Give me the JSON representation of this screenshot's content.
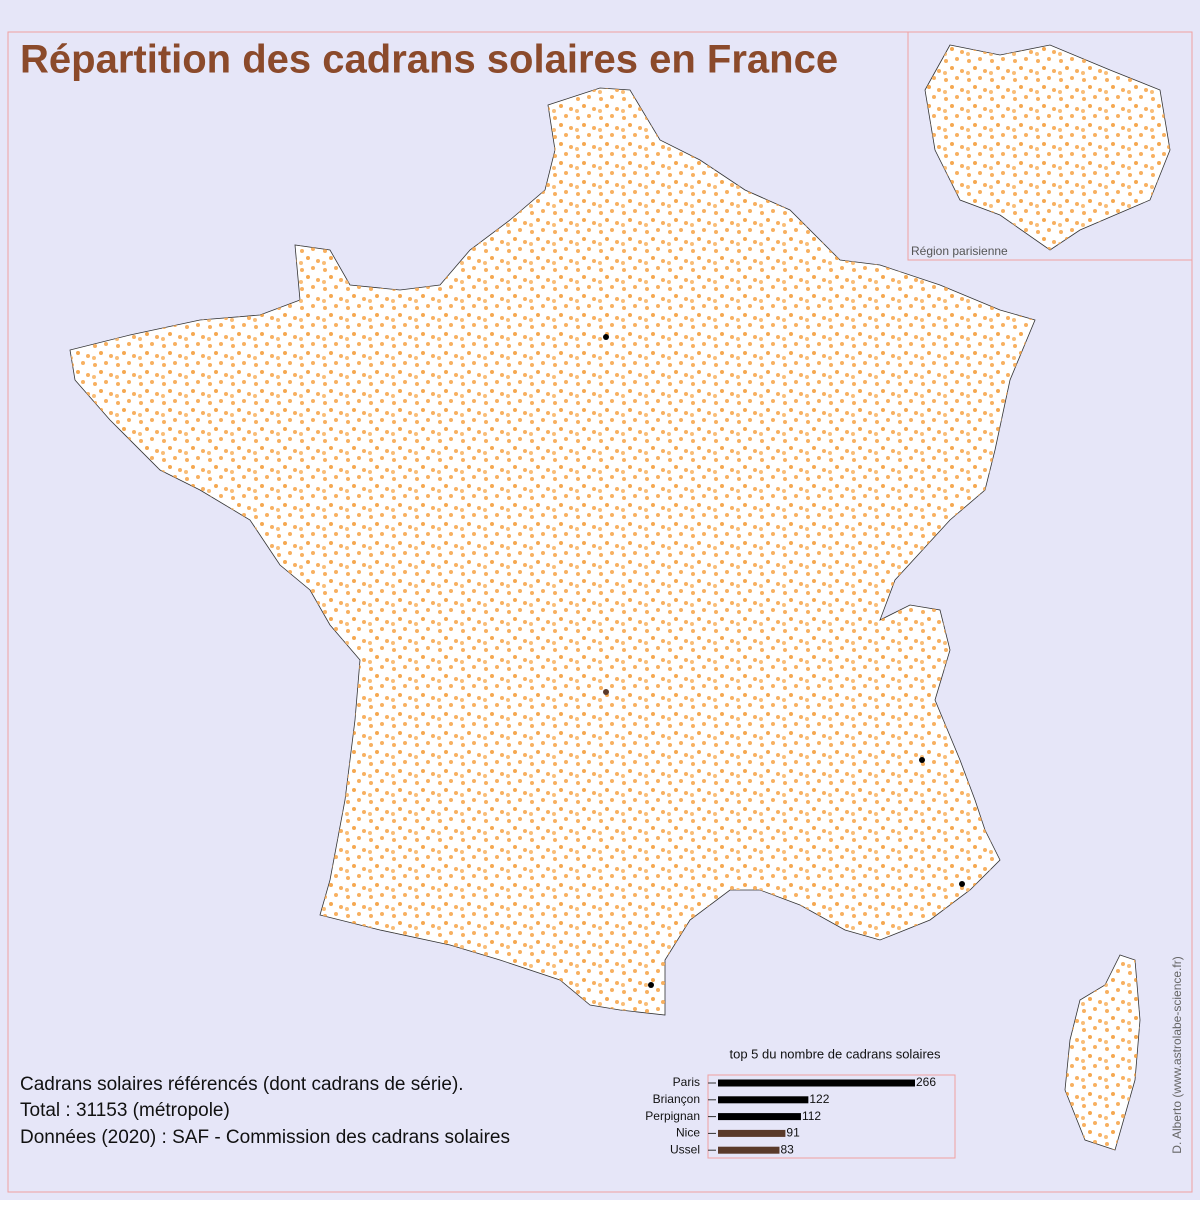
{
  "title": "Répartition des cadrans solaires en France",
  "inset_label": "Région parisienne",
  "notes": [
    "Cadrans solaires référencés (dont cadrans de série).",
    "Total : 31153 (métropole)",
    "Données (2020) : SAF - Commission des cadrans solaires"
  ],
  "credit": "D. Alberto (www.astrolabe-science.fr)",
  "chart_data": {
    "type": "barh",
    "title": "top 5 du nombre de cadrans solaires",
    "categories": [
      "Paris",
      "Briançon",
      "Perpignan",
      "Nice",
      "Ussel"
    ],
    "values": [
      266,
      122,
      112,
      91,
      83
    ],
    "colors": [
      "#000000",
      "#000000",
      "#000000",
      "#5a3a2a",
      "#5a3a2a"
    ],
    "xlim": [
      0,
      266
    ]
  }
}
